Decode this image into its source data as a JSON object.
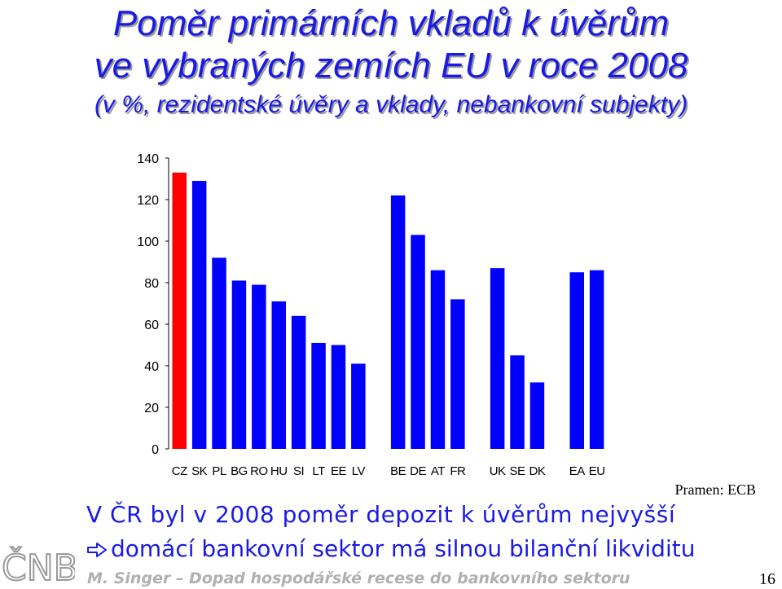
{
  "slide": {
    "title_line1": "Poměr primárních vkladů k úvěrům",
    "title_line2": "ve vybraných zemích EU v roce 2008",
    "subtitle": "(v %, rezidentské úvěry a vklady, nebankovní subjekty)",
    "source": "Pramen: ECB",
    "statement": "V ČR byl v 2008 poměr depozit k úvěrům nejvyšší",
    "bullet": "domácí bankovní sektor má silnou bilanční likviditu",
    "footer": "M. Singer – Dopad hospodářské recese do bankovního sektoru",
    "page_number": "16",
    "logo_text": "ČNB"
  },
  "colors": {
    "title": "#1a1ae6",
    "bar_default": "#0000ff",
    "bar_highlight": "#ff0000",
    "footer": "#b0b0b0"
  },
  "chart_data": {
    "type": "bar",
    "title": "",
    "xlabel": "",
    "ylabel": "",
    "ylim": [
      0,
      140
    ],
    "yticks": [
      0,
      20,
      40,
      60,
      80,
      100,
      120,
      140
    ],
    "grid": false,
    "legend": "none",
    "categories": [
      "CZ",
      "SK",
      "PL",
      "BG",
      "RO",
      "HU",
      "SI",
      "LT",
      "EE",
      "LV",
      "",
      "BE",
      "DE",
      "AT",
      "FR",
      "",
      "UK",
      "SE",
      "DK",
      "",
      "EA",
      "EU"
    ],
    "values": [
      133,
      129,
      92,
      81,
      79,
      71,
      64,
      51,
      50,
      41,
      null,
      122,
      103,
      86,
      72,
      null,
      87,
      45,
      32,
      null,
      85,
      86
    ],
    "highlight": [
      "CZ"
    ]
  }
}
